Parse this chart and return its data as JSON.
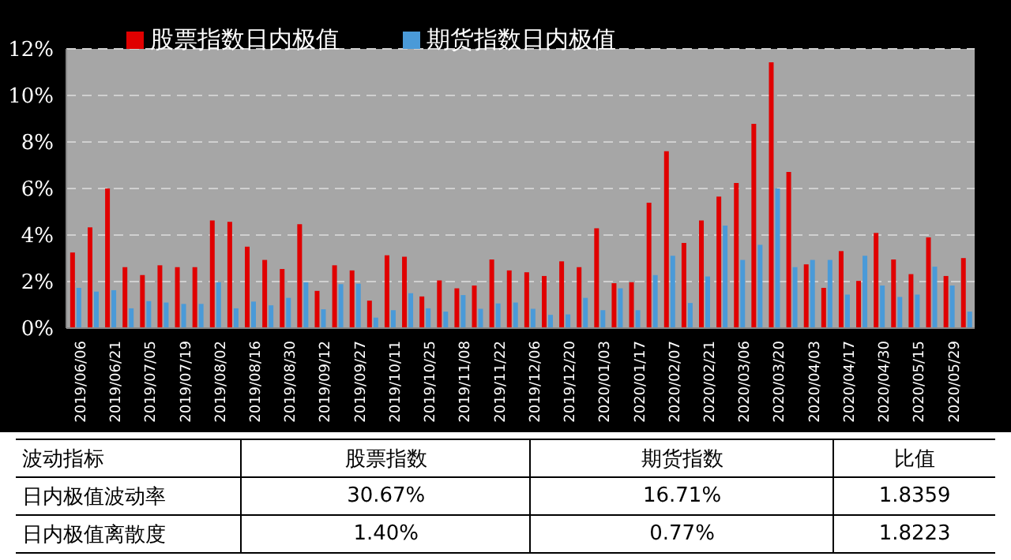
{
  "chart_data": {
    "type": "bar",
    "categories": [
      "2019/06/06",
      null,
      "2019/06/21",
      null,
      "2019/07/05",
      null,
      "2019/07/19",
      null,
      "2019/08/02",
      null,
      "2019/08/16",
      null,
      "2019/08/30",
      null,
      "2019/09/12",
      null,
      "2019/09/27",
      null,
      "2019/10/11",
      null,
      "2019/10/25",
      null,
      "2019/11/08",
      null,
      "2019/11/22",
      null,
      "2019/12/06",
      null,
      "2019/12/20",
      null,
      "2020/01/03",
      null,
      "2020/01/17",
      null,
      "2020/02/07",
      null,
      "2020/02/21",
      null,
      "2020/03/06",
      null,
      "2020/03/20",
      null,
      "2020/04/03",
      null,
      "2020/04/17",
      null,
      "2020/04/30",
      null,
      "2020/05/15",
      null,
      "2020/05/29",
      null
    ],
    "series": [
      {
        "name": "股票指数日内极值",
        "color": "#e00000",
        "values": [
          3.25,
          4.33,
          6.0,
          2.62,
          2.28,
          2.7,
          2.62,
          2.62,
          4.63,
          4.57,
          3.5,
          2.93,
          2.54,
          4.47,
          1.6,
          2.7,
          2.48,
          1.18,
          3.13,
          3.07,
          1.36,
          2.05,
          1.71,
          1.83,
          2.95,
          2.48,
          2.4,
          2.24,
          2.87,
          2.62,
          4.29,
          1.93,
          1.97,
          5.39,
          7.6,
          3.66,
          4.63,
          5.65,
          6.24,
          8.78,
          11.42,
          6.71,
          2.74,
          1.73,
          3.31,
          2.03,
          4.09,
          2.95,
          2.32,
          3.9,
          2.24,
          3.01
        ]
      },
      {
        "name": "期货指数日内极值",
        "color": "#4a9ad8",
        "values": [
          1.73,
          1.57,
          1.63,
          0.85,
          1.16,
          1.1,
          1.04,
          1.04,
          1.97,
          0.85,
          1.14,
          0.98,
          1.3,
          1.97,
          0.81,
          1.89,
          1.91,
          0.45,
          0.77,
          1.5,
          0.85,
          0.71,
          1.42,
          0.83,
          1.06,
          1.1,
          0.83,
          0.57,
          0.59,
          1.3,
          0.77,
          1.71,
          0.77,
          2.28,
          3.11,
          1.08,
          2.22,
          4.41,
          2.93,
          3.58,
          6.0,
          2.62,
          2.93,
          2.93,
          1.44,
          3.11,
          1.83,
          1.34,
          1.44,
          2.64,
          1.83,
          0.71
        ]
      }
    ],
    "ylim": [
      0,
      12
    ],
    "yticks": [
      {
        "value": 0,
        "label": "0%"
      },
      {
        "value": 2,
        "label": "2%"
      },
      {
        "value": 4,
        "label": "4%"
      },
      {
        "value": 6,
        "label": "6%"
      },
      {
        "value": 8,
        "label": "8%"
      },
      {
        "value": 10,
        "label": "10%"
      },
      {
        "value": 12,
        "label": "12%"
      }
    ],
    "grid": "y",
    "legend": "top",
    "annotations": [
      "波动指标",
      "股票指数",
      "期货指数",
      "比值",
      "日内极值波动率",
      "30.67%",
      "16.71%",
      "1.8359",
      "日内极值离散度",
      "1.40%",
      "0.77%",
      "1.8223"
    ]
  }
}
